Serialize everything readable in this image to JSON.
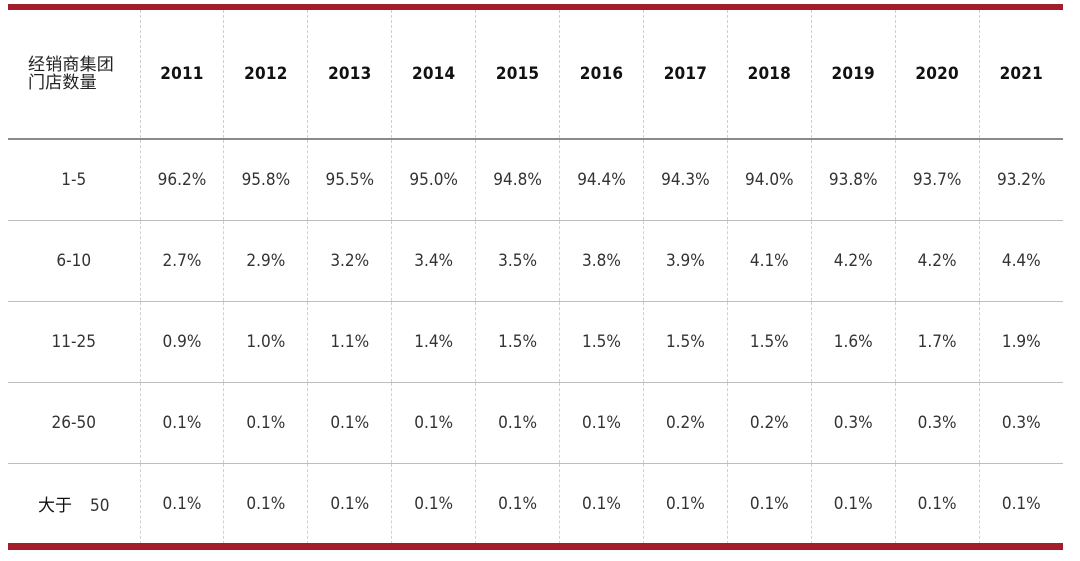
{
  "chart_data": {
    "type": "table",
    "corner_header": [
      "经销商集团",
      "门店数量"
    ],
    "columns": [
      "2011",
      "2012",
      "2013",
      "2014",
      "2015",
      "2016",
      "2017",
      "2018",
      "2019",
      "2020",
      "2021"
    ],
    "rows": [
      {
        "label": "1-5",
        "values": [
          "96.2%",
          "95.8%",
          "95.5%",
          "95.0%",
          "94.8%",
          "94.4%",
          "94.3%",
          "94.0%",
          "93.8%",
          "93.7%",
          "93.2%"
        ]
      },
      {
        "label": "6-10",
        "values": [
          "2.7%",
          "2.9%",
          "3.2%",
          "3.4%",
          "3.5%",
          "3.8%",
          "3.9%",
          "4.1%",
          "4.2%",
          "4.2%",
          "4.4%"
        ]
      },
      {
        "label": "11-25",
        "values": [
          "0.9%",
          "1.0%",
          "1.1%",
          "1.4%",
          "1.5%",
          "1.5%",
          "1.5%",
          "1.5%",
          "1.6%",
          "1.7%",
          "1.9%"
        ]
      },
      {
        "label": "26-50",
        "values": [
          "0.1%",
          "0.1%",
          "0.1%",
          "0.1%",
          "0.1%",
          "0.1%",
          "0.2%",
          "0.2%",
          "0.3%",
          "0.3%",
          "0.3%"
        ]
      },
      {
        "label_prefix": "大于",
        "label": "50",
        "values": [
          "0.1%",
          "0.1%",
          "0.1%",
          "0.1%",
          "0.1%",
          "0.1%",
          "0.1%",
          "0.1%",
          "0.1%",
          "0.1%",
          "0.1%"
        ]
      }
    ],
    "accent_color": "#a31d2a"
  }
}
